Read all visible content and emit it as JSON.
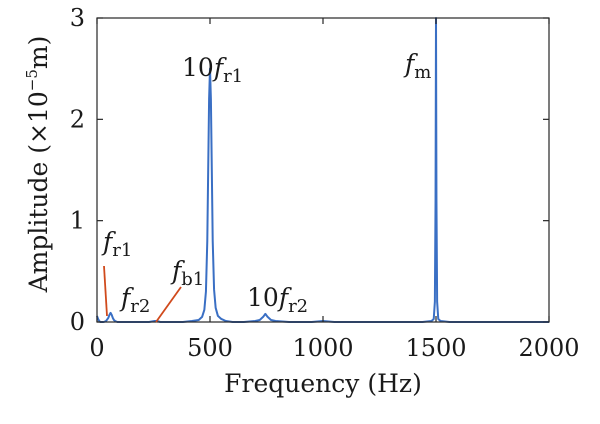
{
  "chart_data": {
    "type": "line",
    "xlabel": "Frequency (Hz)",
    "ylabel_parts": {
      "prefix": "Amplitude (×10",
      "exponent": "−5",
      "suffix": "m)"
    },
    "xlim": [
      0,
      2000
    ],
    "ylim": [
      0,
      3
    ],
    "x_ticks": [
      0,
      500,
      1000,
      1500,
      2000
    ],
    "y_ticks": [
      0,
      1,
      2,
      3
    ],
    "x_tick_labels": [
      "0",
      "500",
      "1000",
      "1500",
      "2000"
    ],
    "y_tick_labels": [
      "0",
      "1",
      "2",
      "3"
    ],
    "grid": false,
    "box": true,
    "series": [
      {
        "color": "#3a6fc4",
        "x": [
          0,
          5,
          10,
          15,
          20,
          30,
          40,
          50,
          55,
          60,
          65,
          70,
          75,
          80,
          90,
          100,
          130,
          160,
          200,
          230,
          255,
          265,
          280,
          320,
          380,
          420,
          450,
          465,
          475,
          482,
          488,
          492,
          496,
          500,
          504,
          508,
          512,
          518,
          525,
          535,
          550,
          570,
          600,
          650,
          700,
          720,
          735,
          745,
          755,
          770,
          790,
          850,
          950,
          1000,
          1050,
          1200,
          1350,
          1440,
          1480,
          1490,
          1495,
          1498,
          1500,
          1502,
          1505,
          1510,
          1520,
          1560,
          1700,
          1850,
          2000
        ],
        "y": [
          0.06,
          0.03,
          0.01,
          0.0,
          0.0,
          0.0,
          0.01,
          0.04,
          0.07,
          0.09,
          0.07,
          0.04,
          0.02,
          0.01,
          0.0,
          0.0,
          0.0,
          0.0,
          0.0,
          0.0,
          0.01,
          0.01,
          0.0,
          0.0,
          0.0,
          0.01,
          0.02,
          0.05,
          0.12,
          0.3,
          0.8,
          1.5,
          2.2,
          2.5,
          2.2,
          1.5,
          0.8,
          0.32,
          0.14,
          0.06,
          0.03,
          0.01,
          0.0,
          0.0,
          0.01,
          0.02,
          0.05,
          0.08,
          0.05,
          0.02,
          0.01,
          0.0,
          0.0,
          0.01,
          0.0,
          0.0,
          0.0,
          0.0,
          0.01,
          0.03,
          0.2,
          1.2,
          3.0,
          1.2,
          0.2,
          0.03,
          0.01,
          0.0,
          0.0,
          0.0,
          0.0
        ]
      }
    ],
    "annotations": [
      {
        "id": "fm",
        "main": "f",
        "sub": "m",
        "prefix": "",
        "x": 1500,
        "y": 3.0,
        "leader": false
      },
      {
        "id": "10fr1",
        "main": "f",
        "sub": "r1",
        "prefix": "10",
        "x": 500,
        "y": 2.5,
        "leader": false
      },
      {
        "id": "fr1",
        "main": "f",
        "sub": "r1",
        "prefix": "",
        "x": 40,
        "y": 0.1,
        "leader": true,
        "leader_color": "#d04a1c"
      },
      {
        "id": "fr2",
        "main": "f",
        "sub": "r2",
        "prefix": "",
        "x": 65,
        "y": 0.09,
        "leader": false
      },
      {
        "id": "fb1",
        "main": "f",
        "sub": "b1",
        "prefix": "",
        "x": 260,
        "y": 0.01,
        "leader": true,
        "leader_color": "#d04a1c"
      },
      {
        "id": "10fr2",
        "main": "f",
        "sub": "r2",
        "prefix": "10",
        "x": 745,
        "y": 0.08,
        "leader": false
      }
    ]
  }
}
